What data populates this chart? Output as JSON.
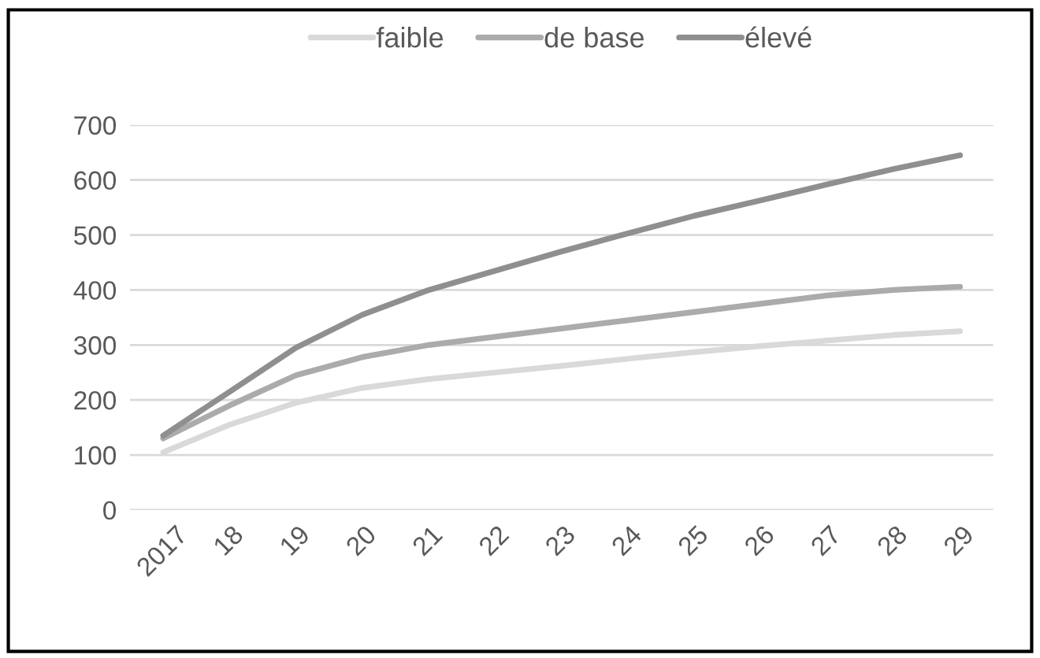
{
  "chart_data": {
    "type": "line",
    "categories": [
      "2017",
      "18",
      "19",
      "20",
      "21",
      "22",
      "23",
      "24",
      "25",
      "26",
      "27",
      "28",
      "29"
    ],
    "series": [
      {
        "name": "faible",
        "color": "#d9d9d9",
        "values": [
          105,
          155,
          195,
          222,
          238,
          250,
          262,
          275,
          287,
          298,
          308,
          318,
          325
        ]
      },
      {
        "name": "de base",
        "color": "#ababab",
        "values": [
          130,
          190,
          245,
          278,
          300,
          315,
          330,
          345,
          360,
          375,
          390,
          400,
          406
        ]
      },
      {
        "name": "élevé",
        "color": "#8f8f8f",
        "values": [
          135,
          215,
          295,
          355,
          400,
          435,
          470,
          503,
          535,
          563,
          592,
          620,
          645
        ]
      }
    ],
    "ylim": [
      0,
      700
    ],
    "yticks": [
      0,
      100,
      200,
      300,
      400,
      500,
      600,
      700
    ],
    "grid": "y",
    "legend": "top",
    "marker": "none",
    "line_style": "solid"
  }
}
